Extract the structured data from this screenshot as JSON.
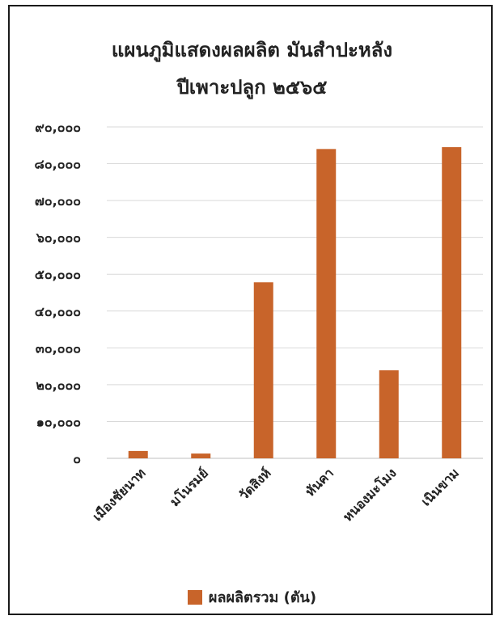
{
  "chart_data": {
    "type": "bar",
    "title_lines": [
      "แผนภูมิแสดงผลผลิต มันสำปะหลัง",
      "ปีเพาะปลูก ๒๕๖๕"
    ],
    "categories": [
      "เมืองชัยนาท",
      "มโนรมย์",
      "วัดสิงห์",
      "หันคา",
      "หนองมะโมง",
      "เนินขาม"
    ],
    "series": [
      {
        "name": "ผลผลิตรวม (ตัน)",
        "values": [
          2000,
          1300,
          47800,
          84000,
          23900,
          84500
        ]
      }
    ],
    "ylim": [
      0,
      90000
    ],
    "y_ticks": [
      0,
      10000,
      20000,
      30000,
      40000,
      50000,
      60000,
      70000,
      80000,
      90000
    ],
    "y_tick_labels": [
      "๐",
      "๑๐,๐๐๐",
      "๒๐,๐๐๐",
      "๓๐,๐๐๐",
      "๔๐,๐๐๐",
      "๕๐,๐๐๐",
      "๖๐,๐๐๐",
      "๗๐,๐๐๐",
      "๘๐,๐๐๐",
      "๙๐,๐๐๐"
    ],
    "grid": true,
    "legend": "bottom",
    "bar_color": "#C8642A",
    "grid_color": "#d9d9d9",
    "text_color": "#222222"
  }
}
